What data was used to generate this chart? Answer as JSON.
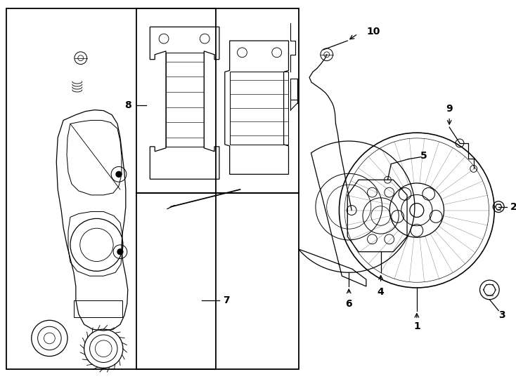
{
  "background_color": "#ffffff",
  "line_color": "#000000",
  "figsize": [
    7.34,
    5.4
  ],
  "dpi": 100,
  "lw": 0.9
}
